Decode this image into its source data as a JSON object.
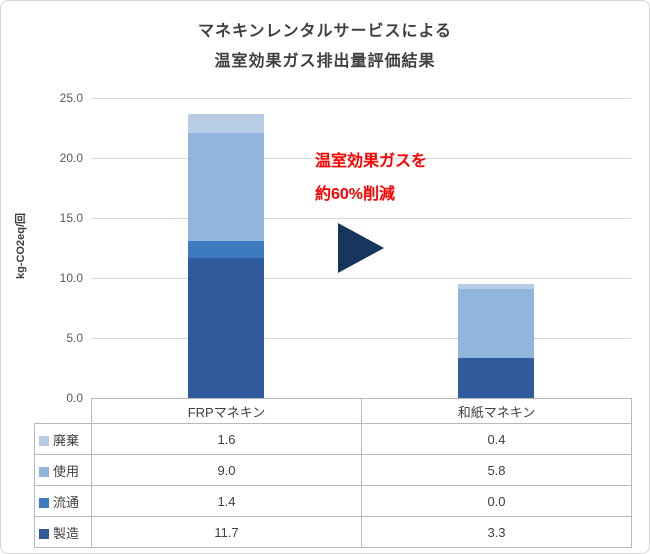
{
  "title": {
    "line1": "マネキンレンタルサービスによる",
    "line2": "温室効果ガス排出量評価結果"
  },
  "y_axis": {
    "label": "kg-CO2eq/回",
    "ticks": [
      "25.0",
      "20.0",
      "15.0",
      "10.0",
      "5.0",
      "0.0"
    ]
  },
  "annotation": {
    "line1": "温室効果ガスを",
    "line2": "約60%削減",
    "color": "#ff0000"
  },
  "arrow": {
    "shape": "right-triangle",
    "color": "#17365d"
  },
  "chart_data": {
    "type": "bar",
    "stacked": true,
    "title": "マネキンレンタルサービスによる温室効果ガス排出量評価結果",
    "categories": [
      "FRPマネキン",
      "和紙マネキン"
    ],
    "series": [
      {
        "name": "製造",
        "values": [
          11.7,
          3.3
        ],
        "color": "#2f5b9d"
      },
      {
        "name": "流通",
        "values": [
          1.4,
          0.0
        ],
        "color": "#3d7ac0"
      },
      {
        "name": "使用",
        "values": [
          9.0,
          5.8
        ],
        "color": "#92b5de"
      },
      {
        "name": "廃棄",
        "values": [
          1.6,
          0.4
        ],
        "color": "#b9cce6"
      }
    ],
    "totals": [
      23.7,
      9.5
    ],
    "ylabel": "kg-CO2eq/回",
    "ylim": [
      0,
      25
    ],
    "ytick_step": 5,
    "grid": true,
    "legend_position": "data-table-left"
  },
  "table": {
    "header": [
      "FRPマネキン",
      "和紙マネキン"
    ],
    "rows": [
      {
        "label": "廃棄",
        "values": [
          "1.6",
          "0.4"
        ],
        "color": "#b9cce6"
      },
      {
        "label": "使用",
        "values": [
          "9.0",
          "5.8"
        ],
        "color": "#92b5de"
      },
      {
        "label": "流通",
        "values": [
          "1.4",
          "0.0"
        ],
        "color": "#3d7ac0"
      },
      {
        "label": "製造",
        "values": [
          "11.7",
          "3.3"
        ],
        "color": "#2f5b9d"
      }
    ]
  }
}
